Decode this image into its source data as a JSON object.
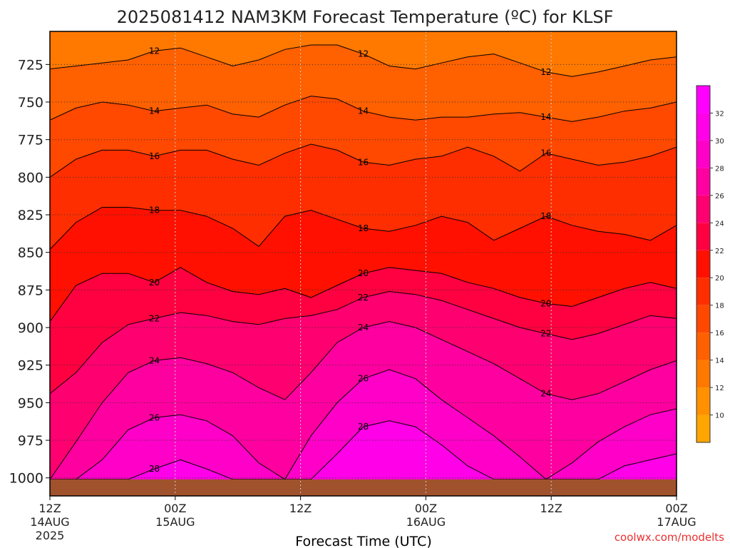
{
  "chart_data": {
    "type": "heatmap",
    "title": "2025081412 NAM3KM Forecast Temperature (ºC) for KLSF",
    "xlabel": "Forecast Time (UTC)",
    "ylabel": "",
    "credit": "coolwx.com/modelts",
    "x_ticks": [
      {
        "hours": 0,
        "line1": "12Z",
        "line2": "14AUG",
        "line3": "2025"
      },
      {
        "hours": 12,
        "line1": "00Z",
        "line2": "15AUG",
        "line3": ""
      },
      {
        "hours": 24,
        "line1": "12Z",
        "line2": "",
        "line3": ""
      },
      {
        "hours": 36,
        "line1": "00Z",
        "line2": "16AUG",
        "line3": ""
      },
      {
        "hours": 48,
        "line1": "12Z",
        "line2": "",
        "line3": ""
      },
      {
        "hours": 60,
        "line1": "00Z",
        "line2": "17AUG",
        "line3": ""
      }
    ],
    "xlim_hours": [
      0,
      60
    ],
    "y_ticks": [
      725,
      750,
      775,
      800,
      825,
      850,
      875,
      900,
      925,
      950,
      975,
      1000
    ],
    "ylim_hpa": [
      703,
      1012
    ],
    "ground_top_hpa": 1001,
    "colorbar": {
      "levels": [
        8,
        10,
        12,
        14,
        16,
        18,
        20,
        22,
        24,
        26,
        28,
        30,
        32,
        34
      ],
      "labels": [
        10,
        12,
        14,
        16,
        18,
        20,
        22,
        24,
        26,
        28,
        30,
        32
      ],
      "colors": [
        "#ffa500",
        "#ff9000",
        "#ff7800",
        "#ff6000",
        "#ff4800",
        "#ff2e00",
        "#ff1000",
        "#ff0040",
        "#ff0070",
        "#ff00a0",
        "#ff00c8",
        "#ff00e8",
        "#ff00ff"
      ]
    },
    "contours": [
      {
        "value": 12,
        "label": "12",
        "hpa": [
          728,
          726,
          724,
          722,
          716,
          714,
          720,
          726,
          722,
          715,
          712,
          712,
          718,
          726,
          728,
          724,
          720,
          718,
          724,
          730,
          733,
          730,
          726,
          722,
          720
        ]
      },
      {
        "value": 14,
        "label": "14",
        "hpa": [
          762,
          754,
          750,
          752,
          756,
          754,
          752,
          758,
          760,
          752,
          746,
          748,
          756,
          760,
          762,
          760,
          760,
          758,
          757,
          760,
          763,
          760,
          756,
          754,
          750
        ]
      },
      {
        "value": 16,
        "label": "16",
        "hpa": [
          800,
          788,
          782,
          782,
          786,
          782,
          782,
          788,
          792,
          784,
          778,
          782,
          790,
          792,
          788,
          786,
          780,
          786,
          796,
          784,
          788,
          792,
          790,
          786,
          780
        ]
      },
      {
        "value": 18,
        "label": "18",
        "hpa": [
          848,
          830,
          820,
          820,
          822,
          822,
          826,
          834,
          846,
          826,
          822,
          828,
          834,
          836,
          832,
          826,
          830,
          842,
          834,
          826,
          832,
          836,
          838,
          842,
          832
        ]
      },
      {
        "value": 20,
        "label": "20",
        "hpa": [
          896,
          872,
          864,
          864,
          870,
          860,
          870,
          876,
          878,
          874,
          880,
          872,
          864,
          860,
          862,
          864,
          870,
          874,
          880,
          884,
          886,
          880,
          874,
          870,
          874
        ]
      },
      {
        "value": 22,
        "label": "22",
        "hpa": [
          944,
          930,
          910,
          898,
          894,
          890,
          892,
          896,
          898,
          894,
          892,
          888,
          880,
          876,
          878,
          882,
          888,
          894,
          900,
          904,
          908,
          904,
          898,
          892,
          894
        ]
      },
      {
        "value": 24,
        "label": "24",
        "hpa": [
          1001,
          976,
          950,
          930,
          922,
          920,
          924,
          930,
          940,
          948,
          930,
          910,
          900,
          896,
          900,
          908,
          916,
          924,
          934,
          944,
          948,
          944,
          936,
          928,
          922
        ]
      },
      {
        "value": 26,
        "label": "26",
        "hpa": [
          1001,
          1001,
          988,
          968,
          960,
          958,
          962,
          972,
          990,
          1001,
          972,
          950,
          934,
          928,
          934,
          948,
          960,
          972,
          986,
          1001,
          990,
          976,
          966,
          958,
          954
        ]
      },
      {
        "value": 28,
        "label": "28",
        "hpa": [
          1001,
          1001,
          1001,
          1001,
          994,
          988,
          994,
          1001,
          1001,
          1001,
          1001,
          984,
          966,
          962,
          966,
          978,
          992,
          1001,
          1001,
          1001,
          1001,
          1001,
          992,
          988,
          984
        ]
      }
    ]
  }
}
